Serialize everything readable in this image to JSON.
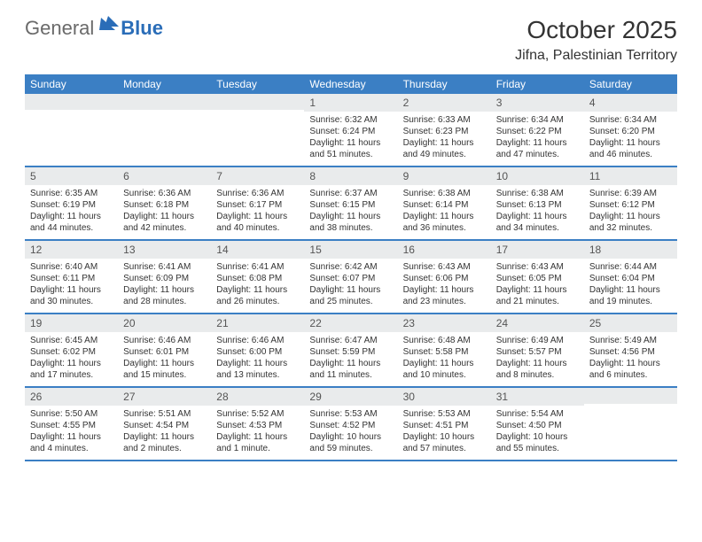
{
  "logo": {
    "text1": "General",
    "text2": "Blue"
  },
  "title": "October 2025",
  "location": "Jifna, Palestinian Territory",
  "colors": {
    "header_bar": "#3b7fc4",
    "daynum_bg": "#e9ebec",
    "logo_gray": "#6a6a6a",
    "logo_blue": "#2a6db8",
    "week_border": "#3b7fc4",
    "text": "#333333",
    "bg": "#ffffff"
  },
  "daysOfWeek": [
    "Sunday",
    "Monday",
    "Tuesday",
    "Wednesday",
    "Thursday",
    "Friday",
    "Saturday"
  ],
  "weeks": [
    [
      {
        "n": "",
        "sr": "",
        "ss": "",
        "dl": ""
      },
      {
        "n": "",
        "sr": "",
        "ss": "",
        "dl": ""
      },
      {
        "n": "",
        "sr": "",
        "ss": "",
        "dl": ""
      },
      {
        "n": "1",
        "sr": "6:32 AM",
        "ss": "6:24 PM",
        "dl": "11 hours and 51 minutes."
      },
      {
        "n": "2",
        "sr": "6:33 AM",
        "ss": "6:23 PM",
        "dl": "11 hours and 49 minutes."
      },
      {
        "n": "3",
        "sr": "6:34 AM",
        "ss": "6:22 PM",
        "dl": "11 hours and 47 minutes."
      },
      {
        "n": "4",
        "sr": "6:34 AM",
        "ss": "6:20 PM",
        "dl": "11 hours and 46 minutes."
      }
    ],
    [
      {
        "n": "5",
        "sr": "6:35 AM",
        "ss": "6:19 PM",
        "dl": "11 hours and 44 minutes."
      },
      {
        "n": "6",
        "sr": "6:36 AM",
        "ss": "6:18 PM",
        "dl": "11 hours and 42 minutes."
      },
      {
        "n": "7",
        "sr": "6:36 AM",
        "ss": "6:17 PM",
        "dl": "11 hours and 40 minutes."
      },
      {
        "n": "8",
        "sr": "6:37 AM",
        "ss": "6:15 PM",
        "dl": "11 hours and 38 minutes."
      },
      {
        "n": "9",
        "sr": "6:38 AM",
        "ss": "6:14 PM",
        "dl": "11 hours and 36 minutes."
      },
      {
        "n": "10",
        "sr": "6:38 AM",
        "ss": "6:13 PM",
        "dl": "11 hours and 34 minutes."
      },
      {
        "n": "11",
        "sr": "6:39 AM",
        "ss": "6:12 PM",
        "dl": "11 hours and 32 minutes."
      }
    ],
    [
      {
        "n": "12",
        "sr": "6:40 AM",
        "ss": "6:11 PM",
        "dl": "11 hours and 30 minutes."
      },
      {
        "n": "13",
        "sr": "6:41 AM",
        "ss": "6:09 PM",
        "dl": "11 hours and 28 minutes."
      },
      {
        "n": "14",
        "sr": "6:41 AM",
        "ss": "6:08 PM",
        "dl": "11 hours and 26 minutes."
      },
      {
        "n": "15",
        "sr": "6:42 AM",
        "ss": "6:07 PM",
        "dl": "11 hours and 25 minutes."
      },
      {
        "n": "16",
        "sr": "6:43 AM",
        "ss": "6:06 PM",
        "dl": "11 hours and 23 minutes."
      },
      {
        "n": "17",
        "sr": "6:43 AM",
        "ss": "6:05 PM",
        "dl": "11 hours and 21 minutes."
      },
      {
        "n": "18",
        "sr": "6:44 AM",
        "ss": "6:04 PM",
        "dl": "11 hours and 19 minutes."
      }
    ],
    [
      {
        "n": "19",
        "sr": "6:45 AM",
        "ss": "6:02 PM",
        "dl": "11 hours and 17 minutes."
      },
      {
        "n": "20",
        "sr": "6:46 AM",
        "ss": "6:01 PM",
        "dl": "11 hours and 15 minutes."
      },
      {
        "n": "21",
        "sr": "6:46 AM",
        "ss": "6:00 PM",
        "dl": "11 hours and 13 minutes."
      },
      {
        "n": "22",
        "sr": "6:47 AM",
        "ss": "5:59 PM",
        "dl": "11 hours and 11 minutes."
      },
      {
        "n": "23",
        "sr": "6:48 AM",
        "ss": "5:58 PM",
        "dl": "11 hours and 10 minutes."
      },
      {
        "n": "24",
        "sr": "6:49 AM",
        "ss": "5:57 PM",
        "dl": "11 hours and 8 minutes."
      },
      {
        "n": "25",
        "sr": "5:49 AM",
        "ss": "4:56 PM",
        "dl": "11 hours and 6 minutes."
      }
    ],
    [
      {
        "n": "26",
        "sr": "5:50 AM",
        "ss": "4:55 PM",
        "dl": "11 hours and 4 minutes."
      },
      {
        "n": "27",
        "sr": "5:51 AM",
        "ss": "4:54 PM",
        "dl": "11 hours and 2 minutes."
      },
      {
        "n": "28",
        "sr": "5:52 AM",
        "ss": "4:53 PM",
        "dl": "11 hours and 1 minute."
      },
      {
        "n": "29",
        "sr": "5:53 AM",
        "ss": "4:52 PM",
        "dl": "10 hours and 59 minutes."
      },
      {
        "n": "30",
        "sr": "5:53 AM",
        "ss": "4:51 PM",
        "dl": "10 hours and 57 minutes."
      },
      {
        "n": "31",
        "sr": "5:54 AM",
        "ss": "4:50 PM",
        "dl": "10 hours and 55 minutes."
      },
      {
        "n": "",
        "sr": "",
        "ss": "",
        "dl": ""
      }
    ]
  ],
  "labels": {
    "sunrise": "Sunrise:",
    "sunset": "Sunset:",
    "daylight": "Daylight:"
  }
}
